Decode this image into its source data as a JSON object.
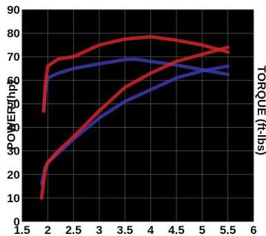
{
  "chart_data": {
    "type": "line",
    "title": "",
    "xlabel": "",
    "ylabel": "POWER (hp)",
    "y2label": "TORQUE (ft-lbs)",
    "xlim": [
      1.5,
      6
    ],
    "ylim": [
      0,
      90
    ],
    "x_ticks": [
      "1.5",
      "2",
      "2.5",
      "3",
      "3.5",
      "4",
      "4.5",
      "5",
      "5.5",
      "6"
    ],
    "y_ticks": [
      "0",
      "10",
      "20",
      "30",
      "40",
      "50",
      "60",
      "70",
      "80",
      "90"
    ],
    "grid": true,
    "background": "#000000",
    "grid_color": "#4a4a4a",
    "series": [
      {
        "color": "#3a3aa8",
        "x": [
          1.88,
          1.95,
          2.0,
          2.2,
          2.5,
          3.0,
          3.5,
          3.7,
          4.0,
          4.5,
          5.0,
          5.5
        ],
        "values": [
          16,
          23,
          25,
          29,
          35,
          44,
          51,
          53,
          56,
          61,
          64,
          66
        ]
      },
      {
        "color": "#3a3aa8",
        "x": [
          1.92,
          1.95,
          2.0,
          2.2,
          2.5,
          3.0,
          3.5,
          3.7,
          4.0,
          4.5,
          5.0,
          5.5
        ],
        "values": [
          47,
          55,
          61,
          63,
          65,
          67,
          68.8,
          69,
          68,
          66.5,
          64.5,
          62.5
        ]
      },
      {
        "color": "#d42323",
        "x": [
          1.88,
          1.95,
          2.0,
          2.2,
          2.5,
          3.0,
          3.5,
          4.0,
          4.5,
          5.0,
          5.5
        ],
        "values": [
          10,
          22,
          25,
          30,
          36,
          47,
          57,
          63,
          68,
          71,
          74
        ]
      },
      {
        "color": "#d42323",
        "x": [
          1.92,
          1.95,
          2.0,
          2.2,
          2.5,
          3.0,
          3.5,
          4.0,
          4.5,
          5.0,
          5.5
        ],
        "values": [
          47,
          58,
          66,
          69,
          70,
          75,
          77.5,
          78.5,
          77,
          75,
          72
        ]
      }
    ]
  }
}
